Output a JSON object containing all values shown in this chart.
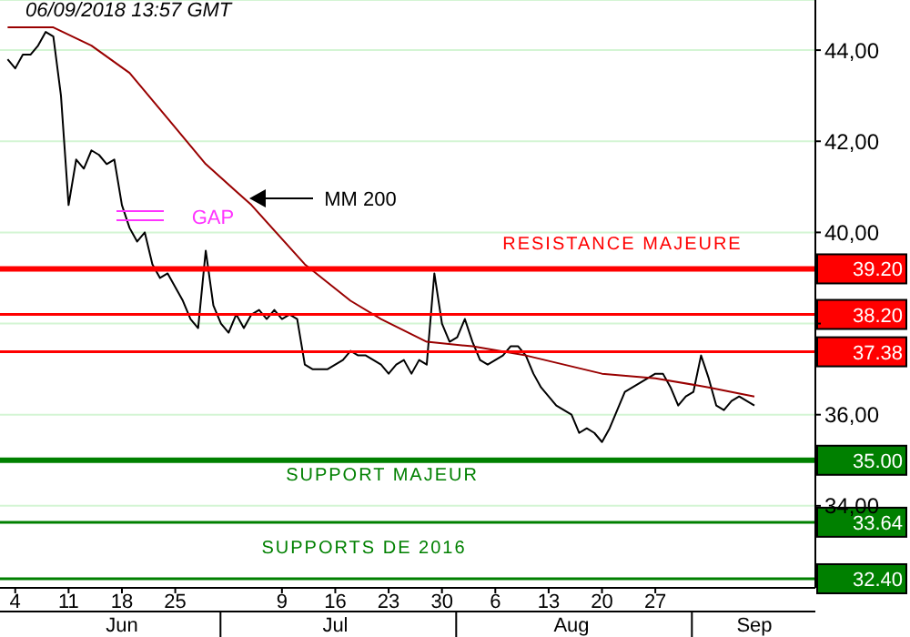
{
  "chart_data": {
    "type": "line",
    "series": [
      {
        "color": "#000000",
        "x": [
          "2018-06-03",
          "2018-06-04",
          "2018-06-05",
          "2018-06-06",
          "2018-06-07",
          "2018-06-08",
          "2018-06-09",
          "2018-06-10",
          "2018-06-11",
          "2018-06-12",
          "2018-06-13",
          "2018-06-14",
          "2018-06-15",
          "2018-06-16",
          "2018-06-17",
          "2018-06-18",
          "2018-06-19",
          "2018-06-20",
          "2018-06-21",
          "2018-06-22",
          "2018-06-23",
          "2018-06-24",
          "2018-06-25",
          "2018-06-26",
          "2018-06-27",
          "2018-06-28",
          "2018-06-29",
          "2018-06-30",
          "2018-07-01",
          "2018-07-02",
          "2018-07-03",
          "2018-07-04",
          "2018-07-05",
          "2018-07-06",
          "2018-07-07",
          "2018-07-08",
          "2018-07-09",
          "2018-07-10",
          "2018-07-11",
          "2018-07-12",
          "2018-07-13",
          "2018-07-14",
          "2018-07-15",
          "2018-07-16",
          "2018-07-17",
          "2018-07-18",
          "2018-07-19",
          "2018-07-20",
          "2018-07-21",
          "2018-07-22",
          "2018-07-23",
          "2018-07-24",
          "2018-07-25",
          "2018-07-26",
          "2018-07-27",
          "2018-07-28",
          "2018-07-29",
          "2018-07-30",
          "2018-07-31",
          "2018-08-01",
          "2018-08-02",
          "2018-08-03",
          "2018-08-04",
          "2018-08-05",
          "2018-08-06",
          "2018-08-07",
          "2018-08-08",
          "2018-08-09",
          "2018-08-10",
          "2018-08-11",
          "2018-08-12",
          "2018-08-13",
          "2018-08-14",
          "2018-08-15",
          "2018-08-16",
          "2018-08-17",
          "2018-08-18",
          "2018-08-19",
          "2018-08-20",
          "2018-08-21",
          "2018-08-22",
          "2018-08-23",
          "2018-08-24",
          "2018-08-25",
          "2018-08-26",
          "2018-08-27",
          "2018-08-28",
          "2018-08-29",
          "2018-08-30",
          "2018-08-31",
          "2018-09-01",
          "2018-09-02",
          "2018-09-03",
          "2018-09-04",
          "2018-09-05",
          "2018-09-06",
          "2018-09-07",
          "2018-09-08",
          "2018-09-09"
        ],
        "values": [
          43.8,
          43.6,
          43.9,
          43.9,
          44.1,
          44.4,
          44.3,
          43.0,
          40.6,
          41.6,
          41.4,
          41.8,
          41.7,
          41.5,
          41.6,
          40.6,
          40.1,
          39.8,
          40.0,
          39.3,
          39.0,
          39.1,
          38.8,
          38.5,
          38.1,
          37.9,
          39.6,
          38.4,
          38.0,
          37.8,
          38.2,
          37.9,
          38.2,
          38.3,
          38.1,
          38.3,
          38.1,
          38.2,
          38.1,
          37.1,
          37.0,
          37.0,
          37.0,
          37.1,
          37.2,
          37.4,
          37.3,
          37.3,
          37.2,
          37.1,
          36.9,
          37.1,
          37.2,
          36.9,
          37.2,
          37.1,
          39.1,
          38.0,
          37.6,
          37.7,
          38.1,
          37.6,
          37.2,
          37.1,
          37.2,
          37.3,
          37.5,
          37.5,
          37.3,
          36.9,
          36.6,
          36.4,
          36.2,
          36.1,
          36.0,
          35.6,
          35.7,
          35.6,
          35.4,
          35.7,
          36.1,
          36.5,
          36.6,
          36.7,
          36.8,
          36.9,
          36.9,
          36.6,
          36.2,
          36.4,
          36.5,
          37.3,
          36.8,
          36.2,
          36.1,
          36.3,
          36.4,
          36.3,
          36.2
        ]
      },
      {
        "color": "#990000",
        "x": [
          "2018-06-03",
          "2018-06-09",
          "2018-06-14",
          "2018-06-19",
          "2018-06-24",
          "2018-06-29",
          "2018-07-05",
          "2018-07-12",
          "2018-07-18",
          "2018-07-22",
          "2018-07-28",
          "2018-08-03",
          "2018-08-10",
          "2018-08-20",
          "2018-08-27",
          "2018-09-03",
          "2018-09-09"
        ],
        "values": [
          44.5,
          44.5,
          44.1,
          43.5,
          42.5,
          41.5,
          40.6,
          39.3,
          38.5,
          38.1,
          37.6,
          37.5,
          37.3,
          36.9,
          36.8,
          36.6,
          36.4
        ]
      }
    ],
    "xlim": [
      "2018-06-02",
      "2018-09-17"
    ],
    "xticks": [
      {
        "value": "2018-06-04",
        "label": "4"
      },
      {
        "value": "2018-06-11",
        "label": "11"
      },
      {
        "value": "2018-06-18",
        "label": "18"
      },
      {
        "value": "2018-06-25",
        "label": "25"
      },
      {
        "value": "2018-07-09",
        "label": "9"
      },
      {
        "value": "2018-07-16",
        "label": "16"
      },
      {
        "value": "2018-07-23",
        "label": "23"
      },
      {
        "value": "2018-07-30",
        "label": "30"
      },
      {
        "value": "2018-08-06",
        "label": "6"
      },
      {
        "value": "2018-08-13",
        "label": "13"
      },
      {
        "value": "2018-08-20",
        "label": "20"
      },
      {
        "value": "2018-08-27",
        "label": "27"
      }
    ],
    "x2lim": [
      "2018-06-02",
      "2018-09-17"
    ],
    "x2ticks": [
      {
        "value": "2018-06-18",
        "label": "Jun"
      },
      {
        "value": "2018-07-16",
        "label": "Jul"
      },
      {
        "value": "2018-08-16",
        "label": "Aug"
      },
      {
        "value": "2018-09-09",
        "label": "Sep"
      }
    ],
    "ylim": [
      32.2,
      45.1
    ],
    "yticks": [
      {
        "value": 34,
        "label": "34,00"
      },
      {
        "value": 36,
        "label": "36,00"
      },
      {
        "value": 38,
        "label": null
      },
      {
        "value": 40,
        "label": "40,00"
      },
      {
        "value": 42,
        "label": "42,00"
      },
      {
        "value": 44,
        "label": "44,00"
      }
    ],
    "grid": "y",
    "ref_lines": [
      {
        "axis": "y",
        "value": 39.2,
        "label": "39.20",
        "color": "#ff0000"
      },
      {
        "axis": "y",
        "value": 38.2,
        "label": "38.20",
        "color": "#ff0000"
      },
      {
        "axis": "y",
        "value": 37.38,
        "label": "37.38",
        "color": "#ff0000"
      },
      {
        "axis": "y",
        "value": 35.0,
        "label": "35.00",
        "color": "#008000"
      },
      {
        "axis": "y",
        "value": 33.64,
        "label": "33.64",
        "color": "#008000"
      },
      {
        "axis": "y",
        "value": 32.4,
        "label": "32.40",
        "color": "#008000"
      }
    ],
    "annotations": [
      "06/09/2018 13:57 GMT",
      "GAP",
      "MM 200",
      "SUPPORTS DE 2016",
      "RESISTANCE MAJEURE",
      "SUPPORT MAJEUR"
    ]
  }
}
